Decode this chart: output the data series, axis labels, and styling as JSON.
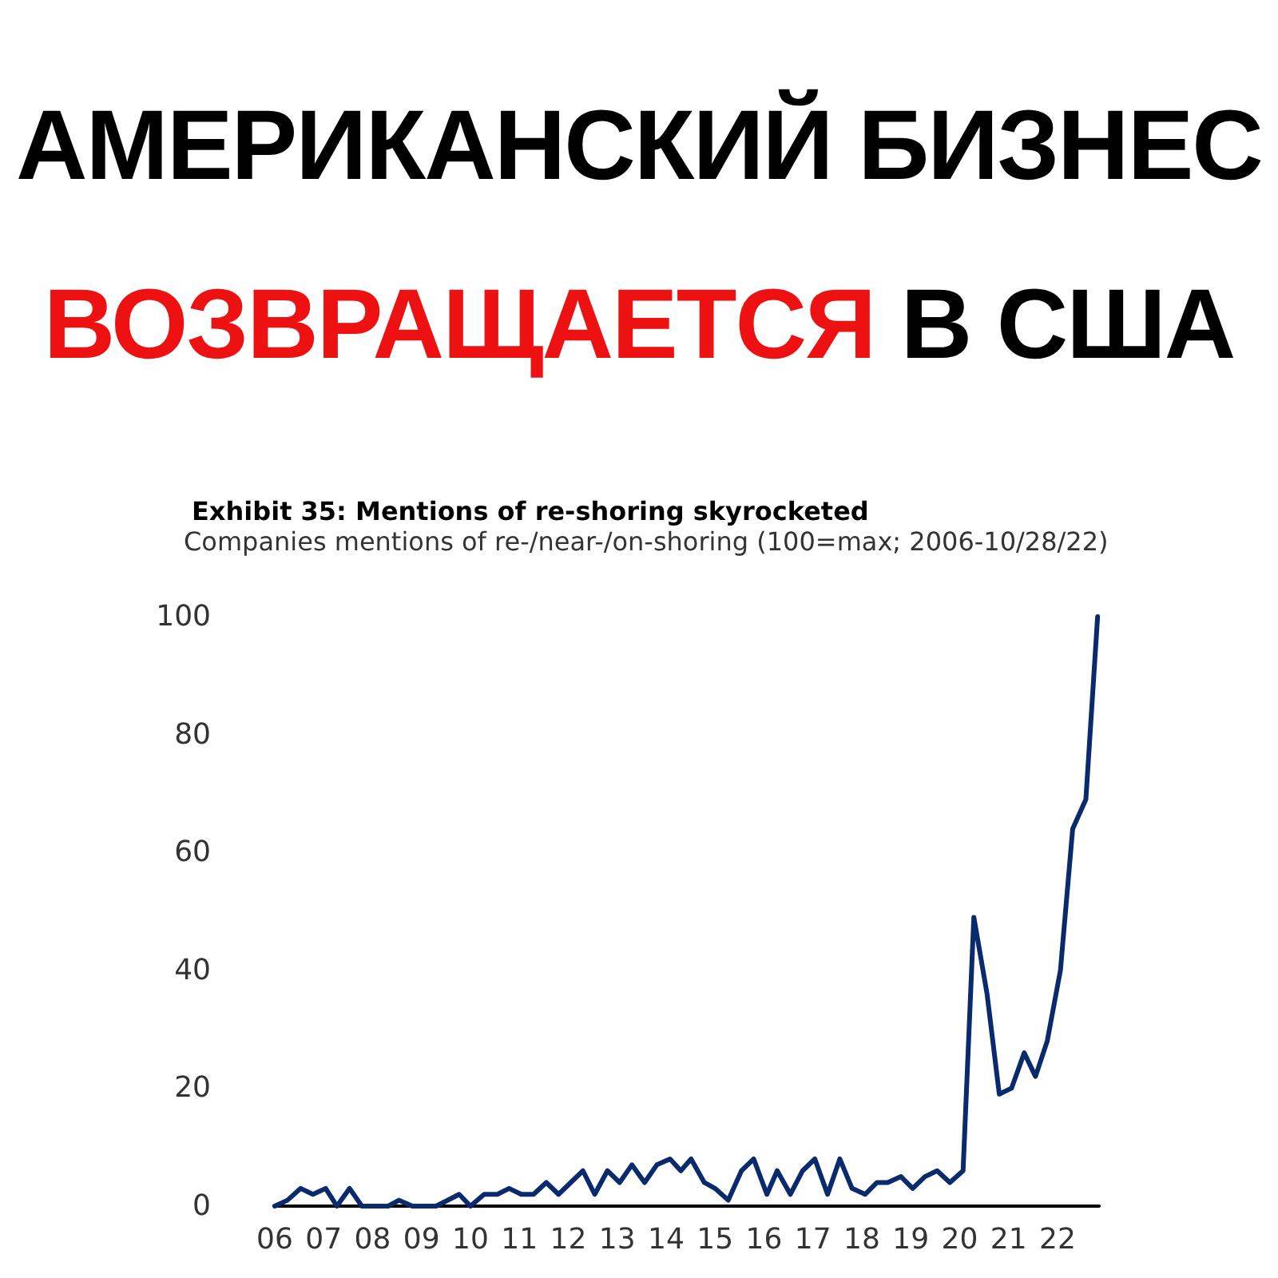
{
  "chart_data": {
    "type": "line",
    "title": "АМЕРИКАНСКИЙ БИЗНЕС\nВОЗВРАЩАЕТСЯ В США",
    "subtitle": "Exhibit 35: Mentions of re-shoring skyrocketed",
    "annotations": [
      "Companies mentions of re-/near-/on-shoring (100=max; 2006-10/28/22)"
    ],
    "series": [
      {
        "color": "#0a2a6e",
        "x": [
          2006.0,
          2006.26,
          2006.53,
          2006.78,
          2007.04,
          2007.27,
          2007.53,
          2007.78,
          2008.32,
          2008.54,
          2008.81,
          2009.3,
          2009.77,
          2010.0,
          2010.28,
          2010.55,
          2010.79,
          2011.04,
          2011.29,
          2011.55,
          2011.8,
          2012.05,
          2012.3,
          2012.54,
          2012.8,
          2013.05,
          2013.3,
          2013.56,
          2013.81,
          2014.08,
          2014.3,
          2014.51,
          2014.78,
          2015.0,
          2015.27,
          2015.54,
          2015.79,
          2016.06,
          2016.27,
          2016.54,
          2016.79,
          2017.04,
          2017.3,
          2017.55,
          2017.8,
          2018.07,
          2018.31,
          2018.53,
          2018.8,
          2019.04,
          2019.29,
          2019.54,
          2019.8,
          2020.07,
          2020.29,
          2020.56,
          2020.81,
          2021.06,
          2021.32,
          2021.55,
          2021.79,
          2022.06,
          2022.31,
          2022.58,
          2022.82
        ],
        "values": [
          0,
          1,
          3,
          2,
          3,
          0,
          3,
          0,
          0,
          1,
          0,
          0,
          2,
          0,
          2,
          2,
          3,
          2,
          2,
          4,
          2,
          4,
          6,
          2,
          6,
          4,
          7,
          4,
          7,
          8,
          6,
          8,
          4,
          3,
          1,
          6,
          8,
          2,
          6,
          2,
          6,
          8,
          2,
          8,
          3,
          2,
          4,
          4,
          5,
          3,
          5,
          6,
          4,
          6,
          49,
          36,
          19,
          20,
          26,
          22,
          28,
          40,
          64,
          69,
          100
        ]
      }
    ],
    "xlim": [
      2006,
      2022.85
    ],
    "xticks": [
      {
        "value": 2006,
        "label": "06"
      },
      {
        "value": 2007,
        "label": "07"
      },
      {
        "value": 2008,
        "label": "08"
      },
      {
        "value": 2009,
        "label": "09"
      },
      {
        "value": 2010,
        "label": "10"
      },
      {
        "value": 2011,
        "label": "11"
      },
      {
        "value": 2012,
        "label": "12"
      },
      {
        "value": 2013,
        "label": "13"
      },
      {
        "value": 2014,
        "label": "14"
      },
      {
        "value": 2015,
        "label": "15"
      },
      {
        "value": 2016,
        "label": "16"
      },
      {
        "value": 2017,
        "label": "17"
      },
      {
        "value": 2018,
        "label": "18"
      },
      {
        "value": 2019,
        "label": "19"
      },
      {
        "value": 2020,
        "label": "20"
      },
      {
        "value": 2021,
        "label": "21"
      },
      {
        "value": 2022,
        "label": "22"
      }
    ],
    "ylim": [
      0,
      100
    ],
    "yticks": [
      0,
      20,
      40,
      60,
      80,
      100
    ],
    "marker": "none",
    "line_style": "solid"
  }
}
